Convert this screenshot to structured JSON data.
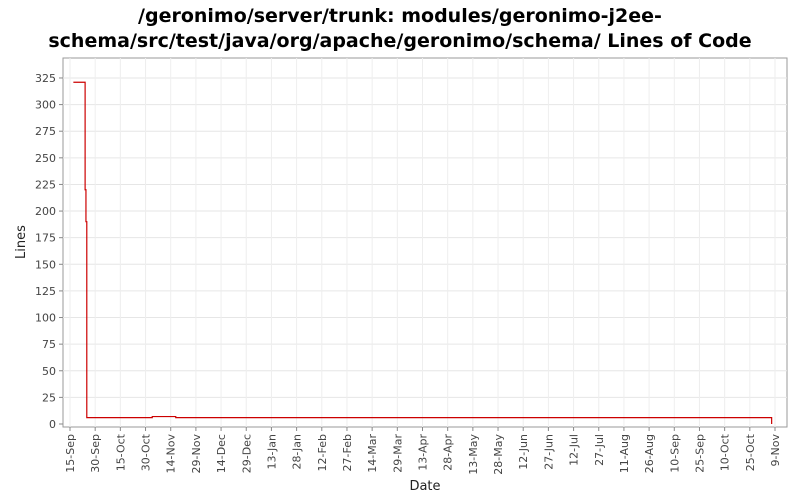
{
  "chart_data": {
    "type": "line",
    "title_lines": [
      "/geronimo/server/trunk: modules/geronimo-j2ee-",
      "schema/src/test/java/org/apache/geronimo/schema/ Lines of Code"
    ],
    "xlabel": "Date",
    "ylabel": "Lines",
    "ylim": [
      0,
      340
    ],
    "yticks": [
      0,
      25,
      50,
      75,
      100,
      125,
      150,
      175,
      200,
      225,
      250,
      275,
      300,
      325
    ],
    "xlim_days": [
      0,
      420
    ],
    "xticks": [
      {
        "label": "15-Sep",
        "day": 0
      },
      {
        "label": "30-Sep",
        "day": 15
      },
      {
        "label": "15-Oct",
        "day": 30
      },
      {
        "label": "30-Oct",
        "day": 45
      },
      {
        "label": "14-Nov",
        "day": 60
      },
      {
        "label": "29-Nov",
        "day": 75
      },
      {
        "label": "14-Dec",
        "day": 90
      },
      {
        "label": "29-Dec",
        "day": 105
      },
      {
        "label": "13-Jan",
        "day": 120
      },
      {
        "label": "28-Jan",
        "day": 135
      },
      {
        "label": "12-Feb",
        "day": 150
      },
      {
        "label": "27-Feb",
        "day": 165
      },
      {
        "label": "14-Mar",
        "day": 180
      },
      {
        "label": "29-Mar",
        "day": 195
      },
      {
        "label": "13-Apr",
        "day": 210
      },
      {
        "label": "28-Apr",
        "day": 225
      },
      {
        "label": "13-May",
        "day": 240
      },
      {
        "label": "28-May",
        "day": 255
      },
      {
        "label": "12-Jun",
        "day": 270
      },
      {
        "label": "27-Jun",
        "day": 285
      },
      {
        "label": "12-Jul",
        "day": 300
      },
      {
        "label": "27-Jul",
        "day": 315
      },
      {
        "label": "11-Aug",
        "day": 330
      },
      {
        "label": "26-Aug",
        "day": 345
      },
      {
        "label": "10-Sep",
        "day": 360
      },
      {
        "label": "25-Sep",
        "day": 375
      },
      {
        "label": "10-Oct",
        "day": 390
      },
      {
        "label": "25-Oct",
        "day": 405
      },
      {
        "label": "9-Nov",
        "day": 420
      }
    ],
    "grid": true,
    "series": [
      {
        "color": "#cc0000",
        "points": [
          {
            "x": 2,
            "y": 321
          },
          {
            "x": 9,
            "y": 321
          },
          {
            "x": 9,
            "y": 220
          },
          {
            "x": 9.5,
            "y": 220
          },
          {
            "x": 9.5,
            "y": 190
          },
          {
            "x": 10,
            "y": 190
          },
          {
            "x": 10,
            "y": 6
          },
          {
            "x": 49,
            "y": 6
          },
          {
            "x": 49,
            "y": 7
          },
          {
            "x": 63,
            "y": 7
          },
          {
            "x": 63,
            "y": 6
          },
          {
            "x": 418,
            "y": 6
          },
          {
            "x": 418,
            "y": 0
          }
        ]
      }
    ]
  }
}
